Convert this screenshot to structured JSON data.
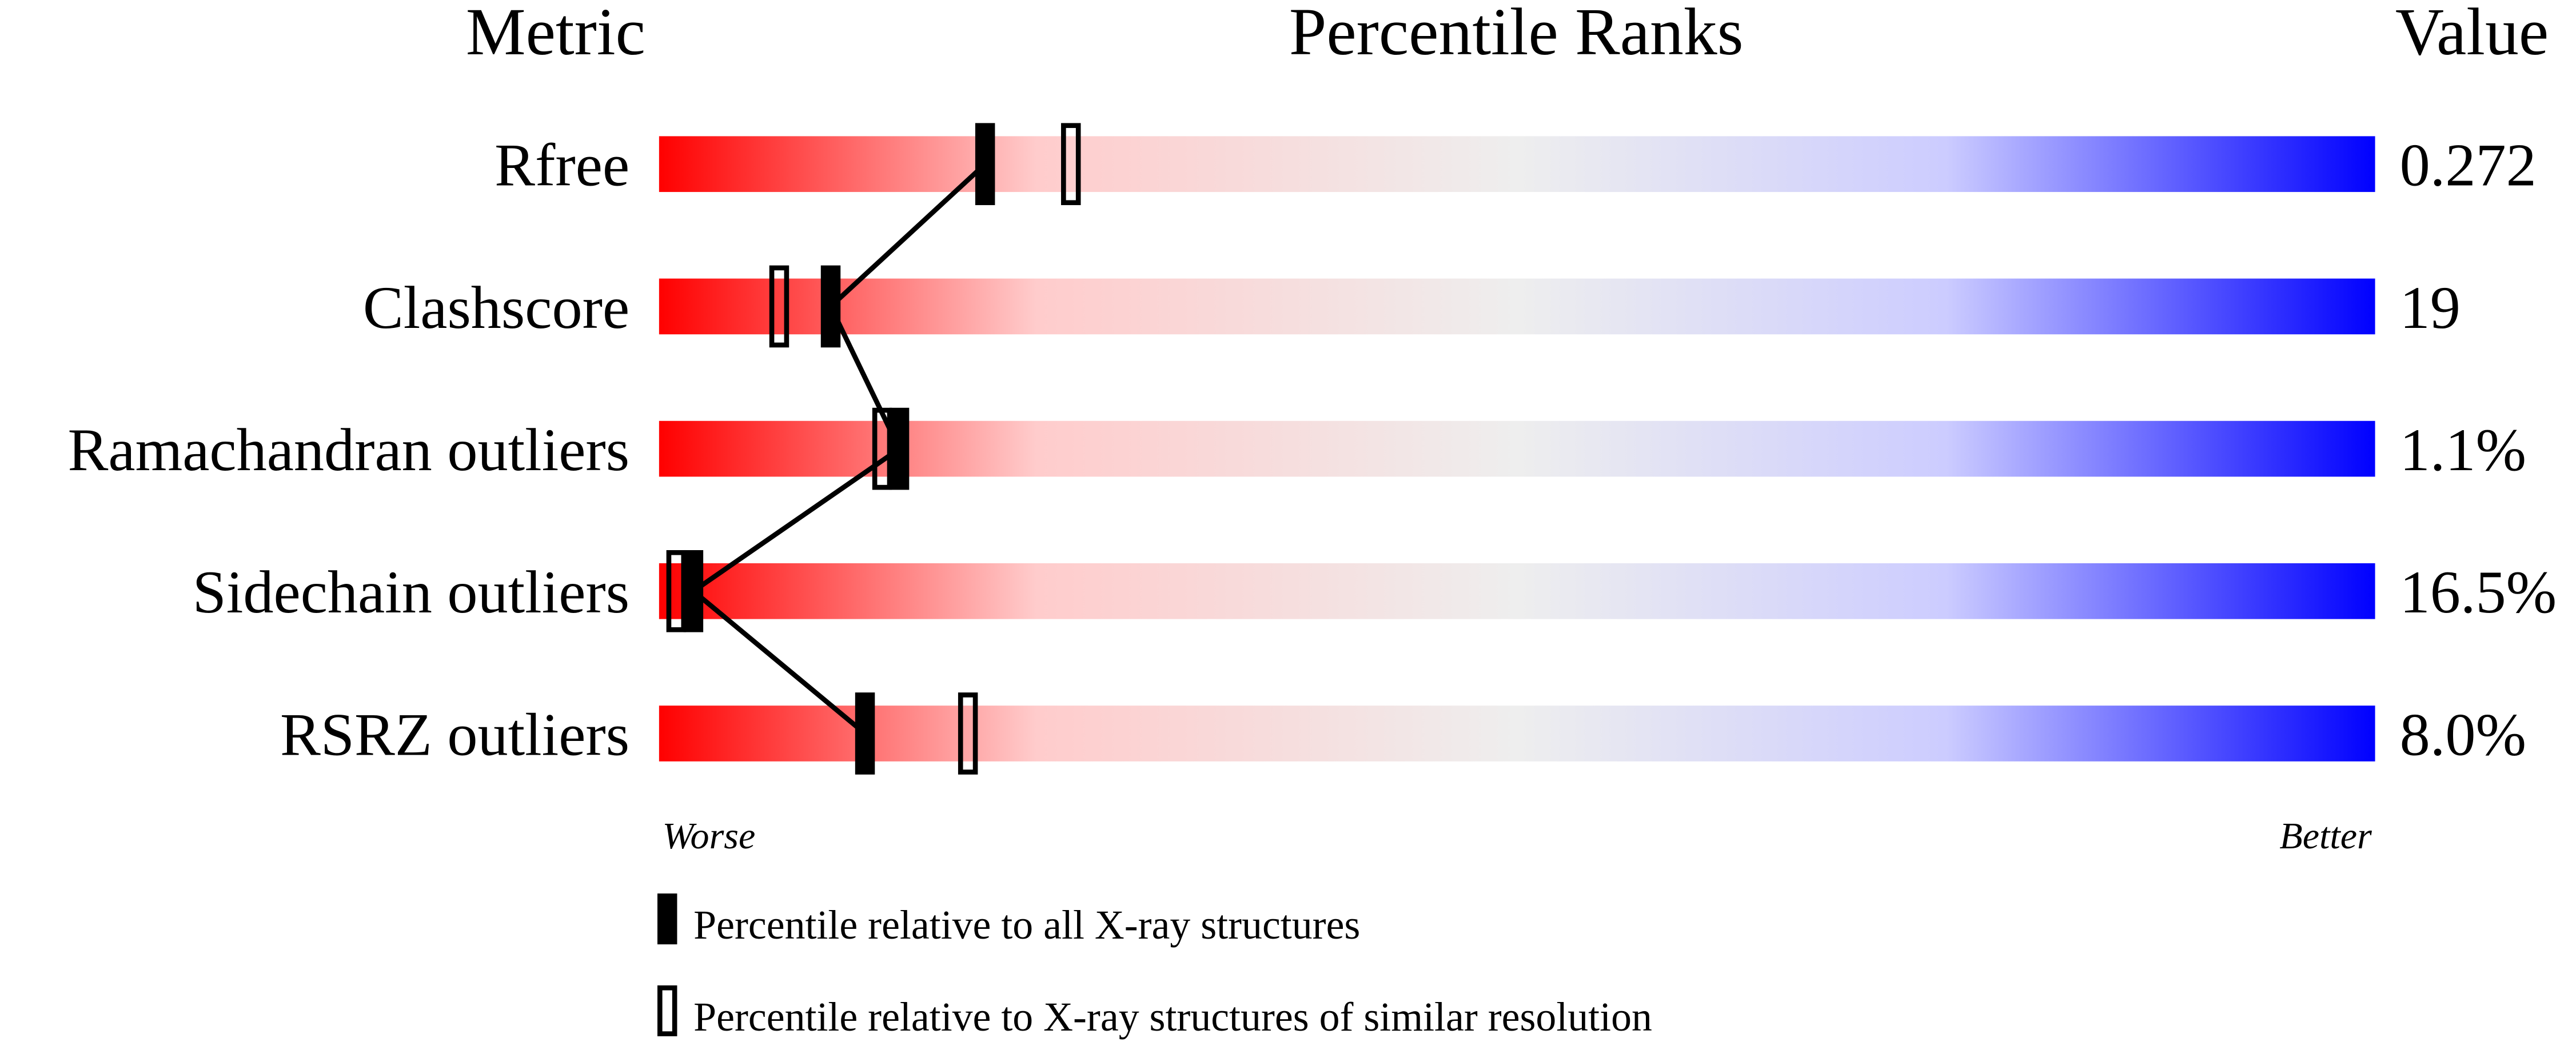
{
  "chart_data": {
    "type": "percentile-slider",
    "column_headers": [
      "Metric",
      "Percentile Ranks",
      "Value"
    ],
    "categories": [
      "Rfree",
      "Clashscore",
      "Ramachandran outliers",
      "Sidechain outliers",
      "RSRZ outliers"
    ],
    "metric_values": [
      "0.272",
      "19",
      "1.1%",
      "16.5%",
      "8.0%"
    ],
    "xlim": [
      0,
      100
    ],
    "axis_end_labels": [
      "Worse",
      "Better"
    ],
    "gradient_colors": [
      "#ff0000",
      "#ffcccc",
      "#eeeeee",
      "#ccccff",
      "#0000ff"
    ],
    "series": [
      {
        "name": "Percentile relative to all X-ray structures",
        "color": "#000000",
        "marker": "filled",
        "values": [
          19,
          10,
          14,
          2,
          12
        ]
      },
      {
        "name": "Percentile relative to X-ray structures of similar resolution",
        "color": "#000000",
        "marker": "hollow",
        "values": [
          24,
          7,
          13,
          1,
          18
        ]
      }
    ]
  }
}
